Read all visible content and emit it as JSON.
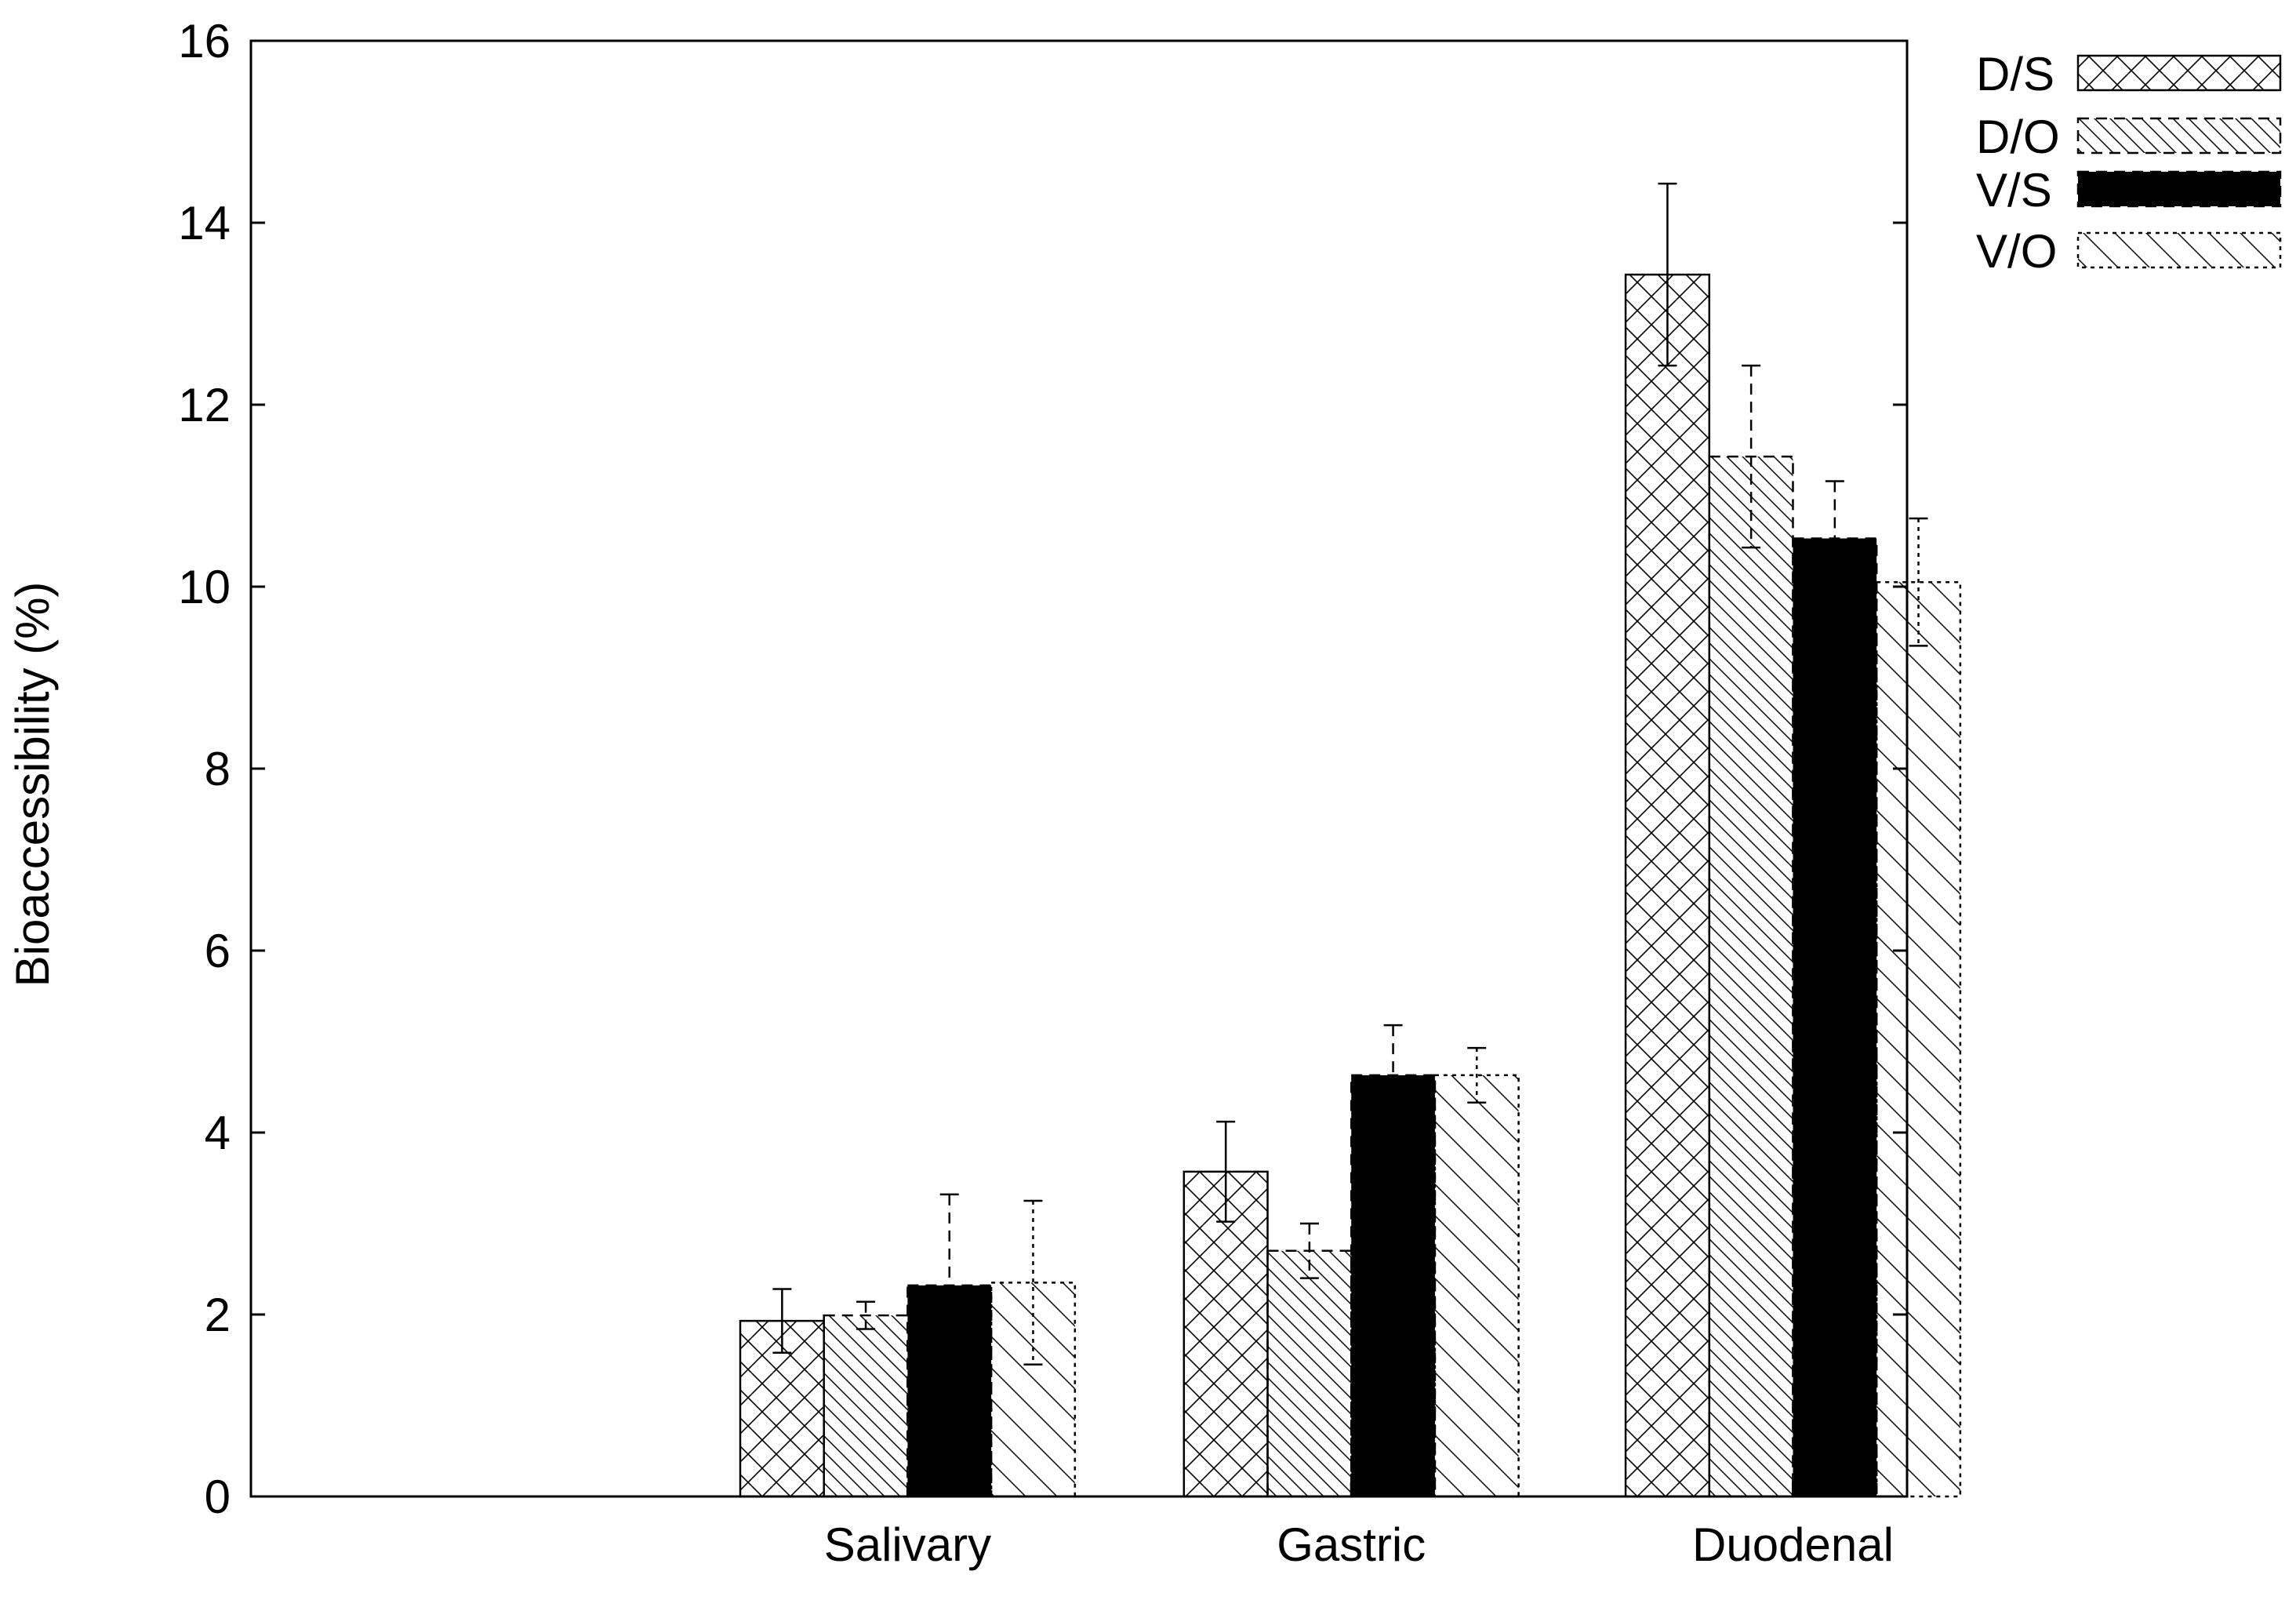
{
  "chart_data": {
    "type": "bar",
    "ylabel": "Bioaccessibility (%)",
    "xlabel": "",
    "ylim": [
      0,
      16
    ],
    "yticks": [
      "0",
      "2",
      "4",
      "6",
      "8",
      "10",
      "12",
      "14",
      "16"
    ],
    "categories": [
      "Salivary",
      "Gastric",
      "Duodenal"
    ],
    "legend_position": "top-right outside",
    "grid": false,
    "series": [
      {
        "name": "D/S",
        "values": [
          1.93,
          3.57,
          13.43
        ],
        "errors": [
          0.35,
          0.55,
          1.0
        ],
        "pattern": "crosshatch",
        "fill": "#ffffff",
        "error_style": "solid"
      },
      {
        "name": "D/O",
        "values": [
          1.99,
          2.7,
          11.43
        ],
        "errors": [
          0.15,
          0.3,
          1.0
        ],
        "pattern": "dense-diagonal",
        "fill": "#ffffff",
        "error_style": "dashed"
      },
      {
        "name": "V/S",
        "values": [
          2.32,
          4.63,
          10.53
        ],
        "errors": [
          1.0,
          0.55,
          0.63
        ],
        "pattern": "solid",
        "fill": "#000000",
        "error_style": "dashed"
      },
      {
        "name": "V/O",
        "values": [
          2.35,
          4.63,
          10.05
        ],
        "errors": [
          0.9,
          0.3,
          0.7
        ],
        "pattern": "sparse-diagonal",
        "fill": "#ffffff",
        "error_style": "dotted"
      }
    ]
  }
}
